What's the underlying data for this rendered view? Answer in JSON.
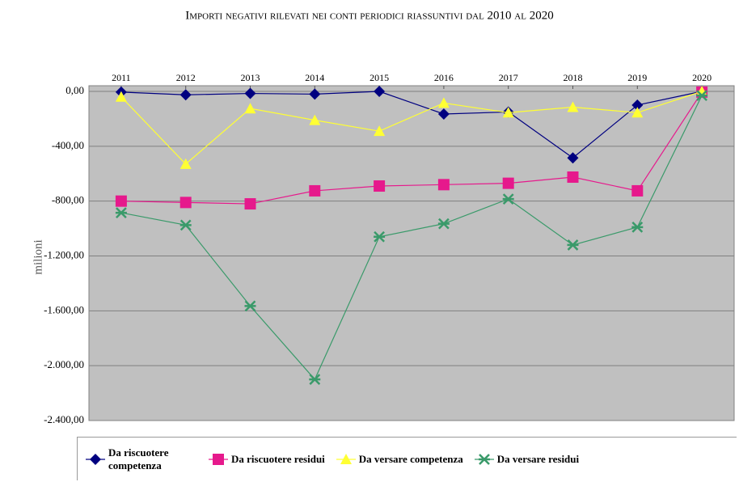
{
  "chart_data": {
    "type": "line",
    "title": "Importi negativi rilevati nei conti periodici riassuntivi dal 2010 al 2020",
    "y_label": "milioni",
    "categories": [
      "2011",
      "2012",
      "2013",
      "2014",
      "2015",
      "2016",
      "2017",
      "2018",
      "2019",
      "2020"
    ],
    "ylim": [
      -2400,
      0
    ],
    "yticks": [
      {
        "value": 0,
        "label": "0,00"
      },
      {
        "value": -400,
        "label": "-400,00"
      },
      {
        "value": -800,
        "label": "-800,00"
      },
      {
        "value": -1200,
        "label": "-1.200,00"
      },
      {
        "value": -1600,
        "label": "-1.600,00"
      },
      {
        "value": -2000,
        "label": "-2.000,00"
      },
      {
        "value": -2400,
        "label": "-2.400,00"
      }
    ],
    "grid": true,
    "legend": "bottom",
    "series": [
      {
        "name": "Da riscuotere competenza",
        "color": "#000080",
        "marker": "diamond",
        "values": [
          -5,
          -25,
          -15,
          -20,
          0,
          -165,
          -150,
          -485,
          -100,
          0
        ]
      },
      {
        "name": "Da riscuotere residui",
        "color": "#e6198c",
        "marker": "square",
        "values": [
          -800,
          -810,
          -820,
          -725,
          -690,
          -680,
          -670,
          -625,
          -725,
          -5
        ]
      },
      {
        "name": "Da versare competenza",
        "color": "#ffff33",
        "marker": "triangle",
        "values": [
          -40,
          -530,
          -125,
          -210,
          -290,
          -85,
          -155,
          -115,
          -155,
          0
        ]
      },
      {
        "name": "Da versare residui",
        "color": "#3a9a6a",
        "marker": "star",
        "values": [
          -885,
          -975,
          -1565,
          -2100,
          -1060,
          -965,
          -785,
          -1120,
          -990,
          -30
        ]
      }
    ]
  }
}
